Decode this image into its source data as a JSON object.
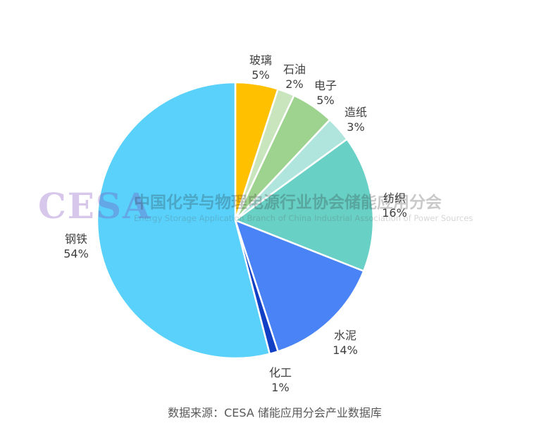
{
  "page": {
    "background_color": "#ffffff"
  },
  "watermark": {
    "logo_text": "CESA",
    "cn_line": "中国化学与物理电源行业协会储能应用分会",
    "en_line": "Energy Storage Application Branch of China Industrial Association of Power Sources",
    "logo_color": "rgba(122, 70, 185, 0.30)",
    "cn_color": "rgba(40, 40, 40, 0.25)",
    "en_color": "rgba(90, 90, 90, 0.25)"
  },
  "footer": {
    "source_note": "数据来源：CESA 储能应用分会产业数据库",
    "source_note_color": "#595959"
  },
  "chart_data": {
    "type": "pie",
    "title": "",
    "categories": [
      "玻璃",
      "石油",
      "电子",
      "造纸",
      "纺织",
      "水泥",
      "化工",
      "钢铁"
    ],
    "values": [
      5,
      2,
      5,
      3,
      16,
      14,
      1,
      54
    ],
    "unit": "%",
    "colors": [
      "#FFC000",
      "#C9E5BE",
      "#9ED28F",
      "#AFE5DD",
      "#68D0C5",
      "#4A83F6",
      "#1240C4",
      "#59D1FA"
    ],
    "slice_border_color": "#ffffff",
    "label_color": "#3f3f3f",
    "label_position": "outside",
    "start_angle": "top",
    "direction": "clockwise",
    "legend": false
  }
}
